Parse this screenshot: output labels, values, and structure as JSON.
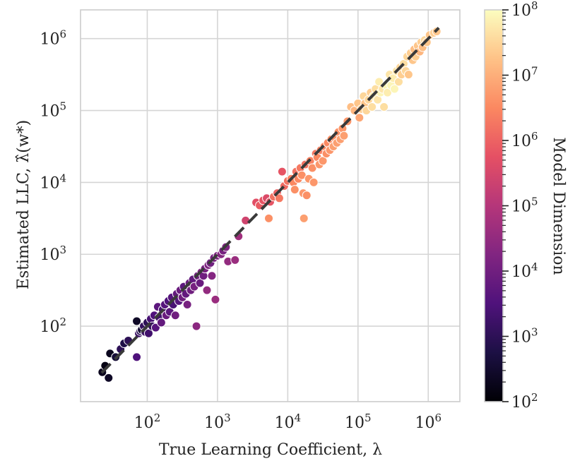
{
  "chart_data": {
    "type": "scatter",
    "xlabel": "True Learning Coefficient, λ",
    "ylabel": "Estimated LLC, λ̂(w*)",
    "xscale": "log",
    "yscale": "log",
    "xlim_log10": [
      1.05,
      6.45
    ],
    "ylim_log10": [
      0.95,
      6.4
    ],
    "x_ticks": [
      {
        "exp": 2,
        "base": "10",
        "sup": "2"
      },
      {
        "exp": 3,
        "base": "10",
        "sup": "3"
      },
      {
        "exp": 4,
        "base": "10",
        "sup": "4"
      },
      {
        "exp": 5,
        "base": "10",
        "sup": "5"
      },
      {
        "exp": 6,
        "base": "10",
        "sup": "6"
      }
    ],
    "y_ticks": [
      {
        "exp": 2,
        "base": "10",
        "sup": "2"
      },
      {
        "exp": 3,
        "base": "10",
        "sup": "3"
      },
      {
        "exp": 4,
        "base": "10",
        "sup": "4"
      },
      {
        "exp": 5,
        "base": "10",
        "sup": "5"
      },
      {
        "exp": 6,
        "base": "10",
        "sup": "6"
      }
    ],
    "grid": true,
    "reference_line": {
      "label": "y = x",
      "log10_from": 1.35,
      "log10_to": 6.15,
      "style": "dashed",
      "color": "#3a3a3a"
    },
    "colorbar": {
      "label": "Model Dimension",
      "scale": "log",
      "range_log10": [
        2,
        8
      ],
      "ticks": [
        {
          "exp": 2,
          "base": "10",
          "sup": "2"
        },
        {
          "exp": 3,
          "base": "10",
          "sup": "3"
        },
        {
          "exp": 4,
          "base": "10",
          "sup": "4"
        },
        {
          "exp": 5,
          "base": "10",
          "sup": "5"
        },
        {
          "exp": 6,
          "base": "10",
          "sup": "6"
        },
        {
          "exp": 7,
          "base": "10",
          "sup": "7"
        },
        {
          "exp": 8,
          "base": "10",
          "sup": "8"
        }
      ],
      "colormap": "magma",
      "stops": [
        "#000004",
        "#1c1044",
        "#4f127b",
        "#812581",
        "#b5367a",
        "#e55064",
        "#fb8861",
        "#fec287",
        "#fcfdbf"
      ]
    },
    "points": [
      [
        1.36,
        1.36,
        2.3
      ],
      [
        1.4,
        1.45,
        2.2
      ],
      [
        1.45,
        1.28,
        2.4
      ],
      [
        1.47,
        1.62,
        2.3
      ],
      [
        1.55,
        1.57,
        2.6
      ],
      [
        1.62,
        1.68,
        3.0
      ],
      [
        1.67,
        1.76,
        2.8
      ],
      [
        1.73,
        1.8,
        3.0
      ],
      [
        1.85,
        2.07,
        2.4
      ],
      [
        1.85,
        1.57,
        3.5
      ],
      [
        1.88,
        1.9,
        3.2
      ],
      [
        1.9,
        1.93,
        3.0
      ],
      [
        1.92,
        1.95,
        2.6
      ],
      [
        1.95,
        2.0,
        3.1
      ],
      [
        1.97,
        1.92,
        3.2
      ],
      [
        2.0,
        2.05,
        3.0
      ],
      [
        2.02,
        1.9,
        3.3
      ],
      [
        2.05,
        2.1,
        3.4
      ],
      [
        2.07,
        2.0,
        3.1
      ],
      [
        2.1,
        2.15,
        3.5
      ],
      [
        2.12,
        1.98,
        3.6
      ],
      [
        2.15,
        2.27,
        3.7
      ],
      [
        2.17,
        2.12,
        3.3
      ],
      [
        2.2,
        2.05,
        3.8
      ],
      [
        2.22,
        2.23,
        3.4
      ],
      [
        2.25,
        2.3,
        3.6
      ],
      [
        2.27,
        2.15,
        3.9
      ],
      [
        2.3,
        2.35,
        3.5
      ],
      [
        2.32,
        2.2,
        3.7
      ],
      [
        2.35,
        2.4,
        3.6
      ],
      [
        2.37,
        2.3,
        3.4
      ],
      [
        2.4,
        2.15,
        4.0
      ],
      [
        2.42,
        2.45,
        3.8
      ],
      [
        2.45,
        2.35,
        3.6
      ],
      [
        2.47,
        2.5,
        3.9
      ],
      [
        2.5,
        2.4,
        4.0
      ],
      [
        2.52,
        2.55,
        3.7
      ],
      [
        2.55,
        2.45,
        3.8
      ],
      [
        2.57,
        2.3,
        4.1
      ],
      [
        2.6,
        2.6,
        3.9
      ],
      [
        2.62,
        2.5,
        4.0
      ],
      [
        2.65,
        2.65,
        3.8
      ],
      [
        2.67,
        2.55,
        4.1
      ],
      [
        2.7,
        2.0,
        4.4
      ],
      [
        2.72,
        2.7,
        4.0
      ],
      [
        2.75,
        2.6,
        3.9
      ],
      [
        2.77,
        2.75,
        4.2
      ],
      [
        2.8,
        2.7,
        4.0
      ],
      [
        2.82,
        2.8,
        4.1
      ],
      [
        2.85,
        2.5,
        4.5
      ],
      [
        2.87,
        2.85,
        4.2
      ],
      [
        2.9,
        2.88,
        4.0
      ],
      [
        2.92,
        2.7,
        4.3
      ],
      [
        2.95,
        2.95,
        4.1
      ],
      [
        2.97,
        2.37,
        4.6
      ],
      [
        3.0,
        2.98,
        4.2
      ],
      [
        3.05,
        3.0,
        4.3
      ],
      [
        3.08,
        3.05,
        4.1
      ],
      [
        3.12,
        3.1,
        4.2
      ],
      [
        3.15,
        2.9,
        4.5
      ],
      [
        3.25,
        2.92,
        4.6
      ],
      [
        3.3,
        3.25,
        4.7
      ],
      [
        3.4,
        3.47,
        5.4
      ],
      [
        3.55,
        3.72,
        5.7
      ],
      [
        3.6,
        3.68,
        5.9
      ],
      [
        3.65,
        3.75,
        5.8
      ],
      [
        3.7,
        3.78,
        5.6
      ],
      [
        3.73,
        3.5,
        6.6
      ],
      [
        3.75,
        3.73,
        5.8
      ],
      [
        3.8,
        3.8,
        6.2
      ],
      [
        3.85,
        3.85,
        6.0
      ],
      [
        3.88,
        3.78,
        6.3
      ],
      [
        3.92,
        4.15,
        5.8
      ],
      [
        3.95,
        3.95,
        6.1
      ],
      [
        4.0,
        4.02,
        6.2
      ],
      [
        4.05,
        4.05,
        6.4
      ],
      [
        4.08,
        4.0,
        6.5
      ],
      [
        4.1,
        3.9,
        6.6
      ],
      [
        4.12,
        4.15,
        6.2
      ],
      [
        4.15,
        4.05,
        6.5
      ],
      [
        4.18,
        4.2,
        6.3
      ],
      [
        4.2,
        4.1,
        6.6
      ],
      [
        4.22,
        3.85,
        6.7
      ],
      [
        4.23,
        3.5,
        6.8
      ],
      [
        4.25,
        4.25,
        6.2
      ],
      [
        4.27,
        3.82,
        6.6
      ],
      [
        4.3,
        4.05,
        6.7
      ],
      [
        4.32,
        4.3,
        6.4
      ],
      [
        4.35,
        4.2,
        6.6
      ],
      [
        4.37,
        4.0,
        6.7
      ],
      [
        4.4,
        4.4,
        6.3
      ],
      [
        4.42,
        4.35,
        6.5
      ],
      [
        4.45,
        4.25,
        6.7
      ],
      [
        4.47,
        4.45,
        6.4
      ],
      [
        4.5,
        4.3,
        6.7
      ],
      [
        4.52,
        4.5,
        6.5
      ],
      [
        4.55,
        4.4,
        6.6
      ],
      [
        4.57,
        4.55,
        6.5
      ],
      [
        4.6,
        4.45,
        6.7
      ],
      [
        4.62,
        4.6,
        6.6
      ],
      [
        4.65,
        4.5,
        6.8
      ],
      [
        4.67,
        4.62,
        6.6
      ],
      [
        4.7,
        4.55,
        6.8
      ],
      [
        4.72,
        4.7,
        6.6
      ],
      [
        4.75,
        4.6,
        6.8
      ],
      [
        4.78,
        4.75,
        6.7
      ],
      [
        4.8,
        4.65,
        6.8
      ],
      [
        4.85,
        4.85,
        6.7
      ],
      [
        4.9,
        5.05,
        7.2
      ],
      [
        4.95,
        5.0,
        7.1
      ],
      [
        5.0,
        5.1,
        7.3
      ],
      [
        5.02,
        4.9,
        6.9
      ],
      [
        5.05,
        5.02,
        7.4
      ],
      [
        5.08,
        5.2,
        7.5
      ],
      [
        5.1,
        5.1,
        7.3
      ],
      [
        5.12,
        5.0,
        7.5
      ],
      [
        5.15,
        5.15,
        7.5
      ],
      [
        5.18,
        5.25,
        7.4
      ],
      [
        5.2,
        5.05,
        7.6
      ],
      [
        5.22,
        5.2,
        7.8
      ],
      [
        5.25,
        5.3,
        7.6
      ],
      [
        5.28,
        5.15,
        7.7
      ],
      [
        5.3,
        5.4,
        7.8
      ],
      [
        5.32,
        5.25,
        7.9
      ],
      [
        5.35,
        5.3,
        7.7
      ],
      [
        5.37,
        5.05,
        7.6
      ],
      [
        5.4,
        5.35,
        7.9
      ],
      [
        5.42,
        5.25,
        7.8
      ],
      [
        5.45,
        5.5,
        7.7
      ],
      [
        5.47,
        5.35,
        7.9
      ],
      [
        5.5,
        5.45,
        7.8
      ],
      [
        5.52,
        5.3,
        7.9
      ],
      [
        5.55,
        5.55,
        7.7
      ],
      [
        5.58,
        5.4,
        7.6
      ],
      [
        5.6,
        5.6,
        7.5
      ],
      [
        5.62,
        5.5,
        7.4
      ],
      [
        5.65,
        5.65,
        7.6
      ],
      [
        5.68,
        5.55,
        7.5
      ],
      [
        5.7,
        5.75,
        7.5
      ],
      [
        5.72,
        5.5,
        7.3
      ],
      [
        5.75,
        5.8,
        7.4
      ],
      [
        5.78,
        5.7,
        7.3
      ],
      [
        5.8,
        5.85,
        7.2
      ],
      [
        5.82,
        5.75,
        7.4
      ],
      [
        5.85,
        5.9,
        7.3
      ],
      [
        5.88,
        5.82,
        7.1
      ],
      [
        5.9,
        5.95,
        7.4
      ],
      [
        5.92,
        5.88,
        7.2
      ],
      [
        5.95,
        5.98,
        7.5
      ],
      [
        5.98,
        5.95,
        7.3
      ],
      [
        6.02,
        6.05,
        7.3
      ],
      [
        6.08,
        6.08,
        7.4
      ],
      [
        6.12,
        6.1,
        7.3
      ]
    ]
  }
}
